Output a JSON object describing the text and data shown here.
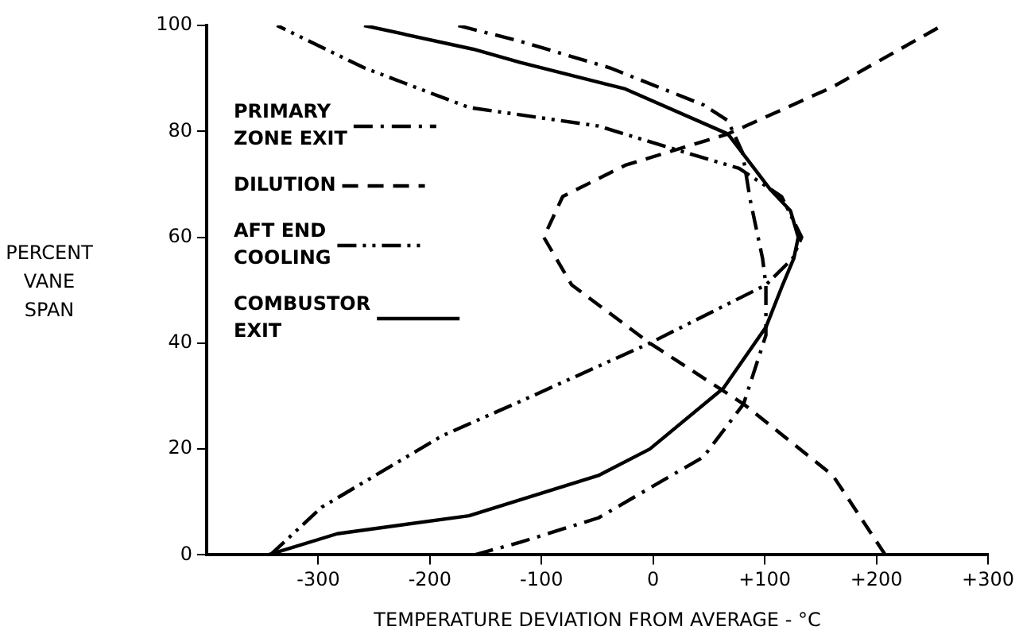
{
  "chart_data": {
    "type": "line",
    "xlabel": "TEMPERATURE DEVIATION FROM AVERAGE - °C",
    "ylabel": "PERCENT VANE SPAN",
    "xlim": [
      -400,
      300
    ],
    "xticks": [
      -300,
      -200,
      -100,
      0,
      {
        "value": 100,
        "label": "+100"
      },
      {
        "value": 200,
        "label": "+200"
      },
      {
        "value": 300,
        "label": "+300"
      }
    ],
    "ylim": [
      0,
      100
    ],
    "yticks": [
      0,
      20,
      40,
      60,
      80,
      100
    ],
    "grid": false,
    "legend": "left",
    "marker": "none",
    "series": [
      {
        "name": "PRIMARY ZONE EXIT",
        "color": "#000000",
        "line_style": "dashdot",
        "x": [
          -160,
          -119,
          -49,
          45,
          81,
          101,
          101,
          98,
          87,
          80,
          67,
          45,
          -39,
          -119,
          -175
        ],
        "values": [
          0,
          2.4,
          7,
          18.5,
          28.5,
          41.5,
          51,
          56,
          67,
          76,
          82,
          85,
          92,
          97,
          100
        ]
      },
      {
        "name": "DILUTION",
        "color": "#000000",
        "line_style": "dashed",
        "x": [
          208,
          161,
          81,
          -3,
          -73,
          -98,
          -81,
          -25,
          67,
          161,
          259
        ],
        "values": [
          0,
          15,
          28.5,
          40,
          51,
          60,
          67.7,
          73.6,
          79.5,
          88.4,
          100
        ]
      },
      {
        "name": "AFT END COOLING",
        "color": "#000000",
        "line_style": "dashdotdot",
        "x": [
          -343,
          -297,
          -189,
          -119,
          -3,
          101,
          125,
          133,
          115,
          77,
          21,
          -49,
          -165,
          -259,
          -337
        ],
        "values": [
          0,
          9,
          22.5,
          29,
          40,
          51,
          56,
          60,
          67.7,
          73,
          76.5,
          81,
          84.5,
          92,
          100
        ]
      },
      {
        "name": "COMBUSTOR EXIT",
        "color": "#000000",
        "line_style": "solid",
        "x": [
          -345,
          -283,
          -165,
          -49,
          -3,
          63,
          101,
          116,
          126,
          130,
          123,
          105,
          67,
          -25,
          -119,
          -161,
          -259
        ],
        "values": [
          0,
          4,
          7.4,
          15,
          20,
          31.5,
          43,
          51,
          56,
          60,
          65,
          69,
          79.5,
          88,
          93,
          95.5,
          100
        ]
      }
    ]
  }
}
